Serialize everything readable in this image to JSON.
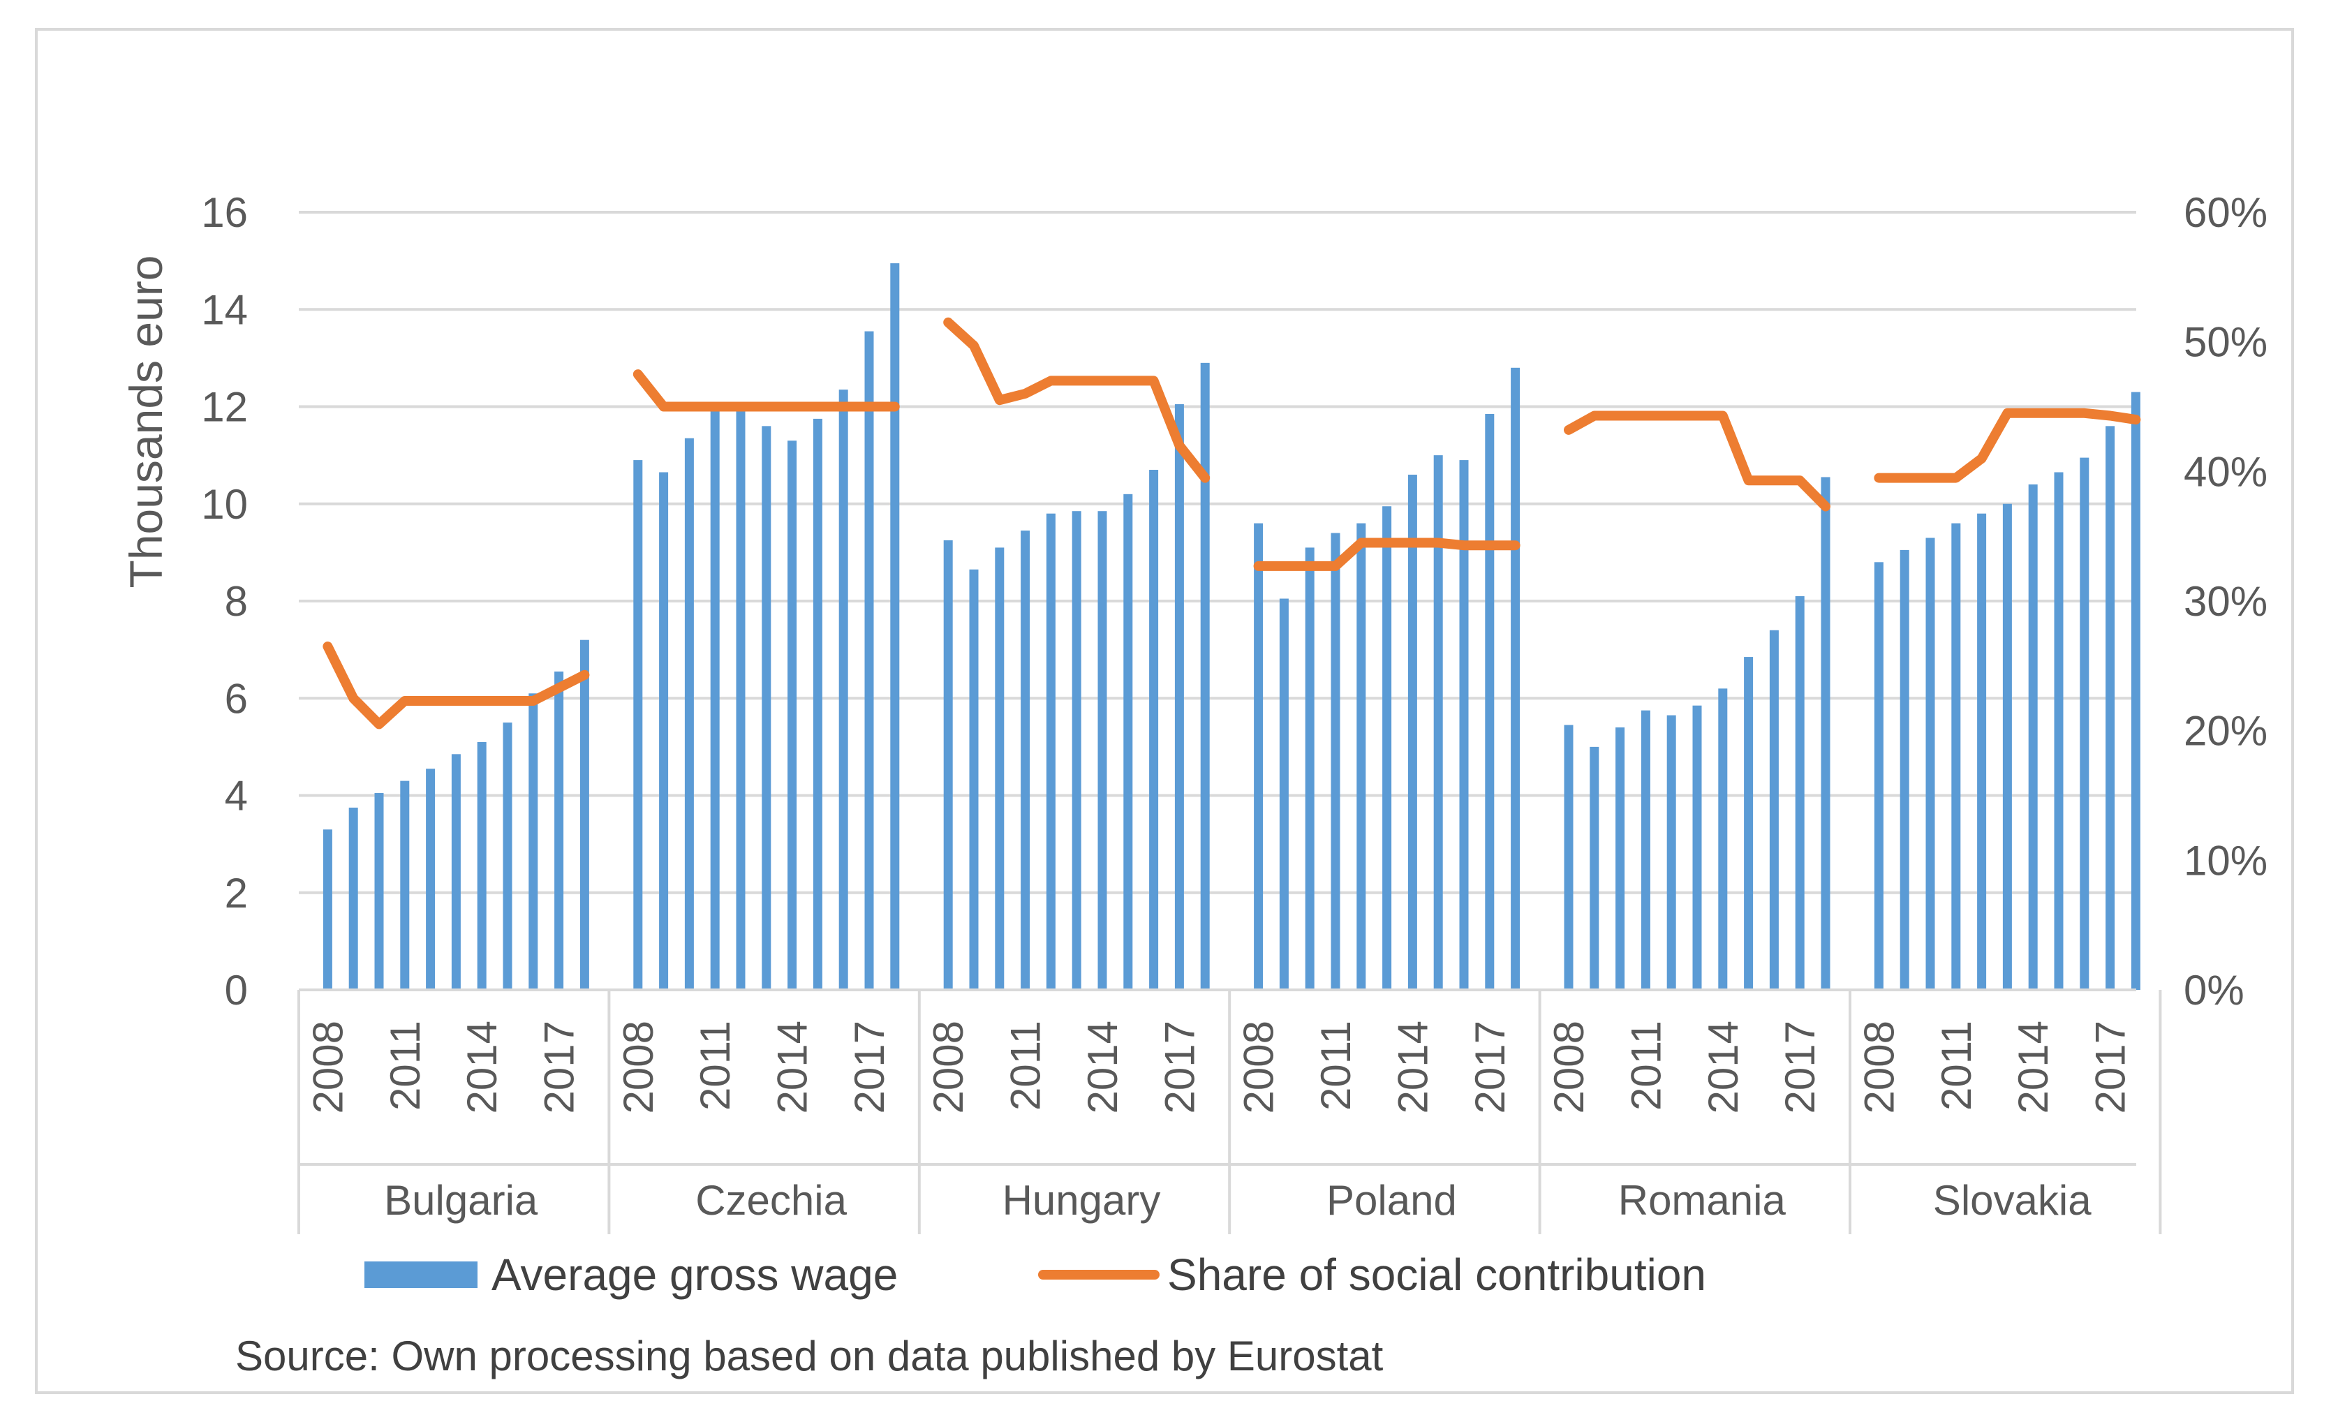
{
  "chart_data": {
    "type": "bar+line",
    "y_left": {
      "label": "Thousands euro",
      "ticks": [
        "0",
        "2",
        "4",
        "6",
        "8",
        "10",
        "12",
        "14",
        "16"
      ],
      "lim": [
        0,
        16
      ]
    },
    "y_right": {
      "ticks": [
        "0%",
        "10%",
        "20%",
        "30%",
        "40%",
        "50%",
        "60%"
      ],
      "lim": [
        0,
        0.6
      ]
    },
    "x_tick_labels": [
      "2008",
      "2011",
      "2014",
      "2017"
    ],
    "x_tick_index": [
      0,
      3,
      6,
      9
    ],
    "years": [
      2008,
      2009,
      2010,
      2011,
      2012,
      2013,
      2014,
      2015,
      2016,
      2017,
      2018
    ],
    "countries": [
      {
        "name": "Bulgaria",
        "wage": [
          3.3,
          3.75,
          4.05,
          4.3,
          4.55,
          4.85,
          5.1,
          5.5,
          6.1,
          6.55,
          7.2
        ],
        "share": [
          0.265,
          0.225,
          0.205,
          0.223,
          0.223,
          0.223,
          0.223,
          0.223,
          0.223,
          0.233,
          0.243
        ]
      },
      {
        "name": "Czechia",
        "wage": [
          10.9,
          10.65,
          11.35,
          11.95,
          12.0,
          11.6,
          11.3,
          11.75,
          12.35,
          13.55,
          14.95
        ],
        "share": [
          0.475,
          0.45,
          0.45,
          0.45,
          0.45,
          0.45,
          0.45,
          0.45,
          0.45,
          0.45,
          0.45
        ]
      },
      {
        "name": "Hungary",
        "wage": [
          9.25,
          8.65,
          9.1,
          9.45,
          9.8,
          9.85,
          9.85,
          10.2,
          10.7,
          12.05,
          12.9
        ],
        "share": [
          0.515,
          0.497,
          0.455,
          0.46,
          0.47,
          0.47,
          0.47,
          0.47,
          0.47,
          0.42,
          0.395
        ]
      },
      {
        "name": "Poland",
        "wage": [
          9.6,
          8.05,
          9.1,
          9.4,
          9.6,
          9.95,
          10.6,
          11.0,
          10.9,
          11.85,
          12.8
        ],
        "share": [
          0.327,
          0.327,
          0.327,
          0.327,
          0.345,
          0.345,
          0.345,
          0.345,
          0.343,
          0.343,
          0.343
        ]
      },
      {
        "name": "Romania",
        "wage": [
          5.45,
          5.0,
          5.4,
          5.75,
          5.65,
          5.85,
          6.2,
          6.85,
          7.4,
          8.1,
          10.55
        ],
        "share": [
          0.432,
          0.443,
          0.443,
          0.443,
          0.443,
          0.443,
          0.443,
          0.393,
          0.393,
          0.393,
          0.373
        ]
      },
      {
        "name": "Slovakia",
        "wage": [
          8.8,
          9.05,
          9.3,
          9.6,
          9.8,
          10.0,
          10.4,
          10.65,
          10.95,
          11.6,
          12.3
        ],
        "share": [
          0.395,
          0.395,
          0.395,
          0.395,
          0.41,
          0.445,
          0.445,
          0.445,
          0.445,
          0.443,
          0.44
        ]
      }
    ],
    "legend": {
      "bars": "Average gross wage",
      "line": "Share of social contribution",
      "position": "bottom"
    },
    "source": "Source: Own processing based on data published by Eurostat",
    "colors": {
      "bar": "#5b9bd5",
      "line": "#ed7d31",
      "grid": "#d9d9d9",
      "text": "#595959"
    }
  }
}
